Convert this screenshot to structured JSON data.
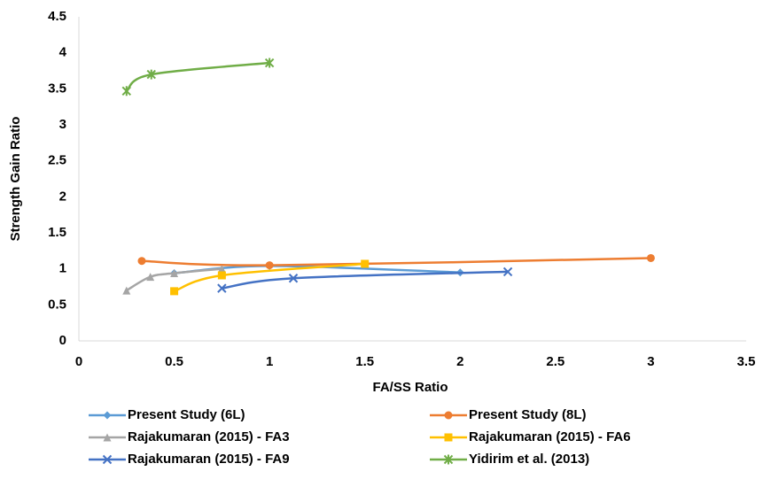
{
  "chart_data": {
    "type": "scatter-smooth",
    "xlabel": "FA/SS Ratio",
    "ylabel": "Strength Gain Ratio",
    "xlim": [
      0,
      3.5
    ],
    "xticks": [
      0,
      0.5,
      1,
      1.5,
      2,
      2.5,
      3,
      3.5
    ],
    "ylim": [
      0,
      4.5
    ],
    "yticks": [
      0,
      0.5,
      1,
      1.5,
      2,
      2.5,
      3,
      3.5,
      4,
      4.5
    ],
    "grid": false,
    "legend": "bottom",
    "series": [
      {
        "name": "Present Study (6L)",
        "color": "#5b9bd5",
        "marker": "diamond",
        "x": [
          0.5,
          1,
          2
        ],
        "values": [
          0.94,
          1.04,
          0.95
        ]
      },
      {
        "name": "Present Study (8L)",
        "color": "#ed7d31",
        "marker": "circle",
        "x": [
          0.33,
          1,
          3
        ],
        "values": [
          1.11,
          1.05,
          1.15
        ]
      },
      {
        "name": "Rajakumaran (2015) - FA3",
        "color": "#a5a5a5",
        "marker": "triangle",
        "x": [
          0.25,
          0.375,
          0.5,
          0.75
        ],
        "values": [
          0.7,
          0.89,
          0.94,
          1.0
        ]
      },
      {
        "name": "Rajakumaran (2015) - FA6",
        "color": "#ffc000",
        "marker": "square",
        "x": [
          0.5,
          0.75,
          1.5
        ],
        "values": [
          0.69,
          0.91,
          1.07
        ]
      },
      {
        "name": "Rajakumaran (2015) - FA9",
        "color": "#4472c4",
        "marker": "x",
        "x": [
          0.75,
          1.125,
          2.25
        ],
        "values": [
          0.73,
          0.87,
          0.96
        ]
      },
      {
        "name": "Yidirim et al. (2013)",
        "color": "#70ad47",
        "marker": "star",
        "x": [
          0.25,
          0.38,
          1
        ],
        "values": [
          3.47,
          3.7,
          3.86
        ]
      }
    ]
  }
}
